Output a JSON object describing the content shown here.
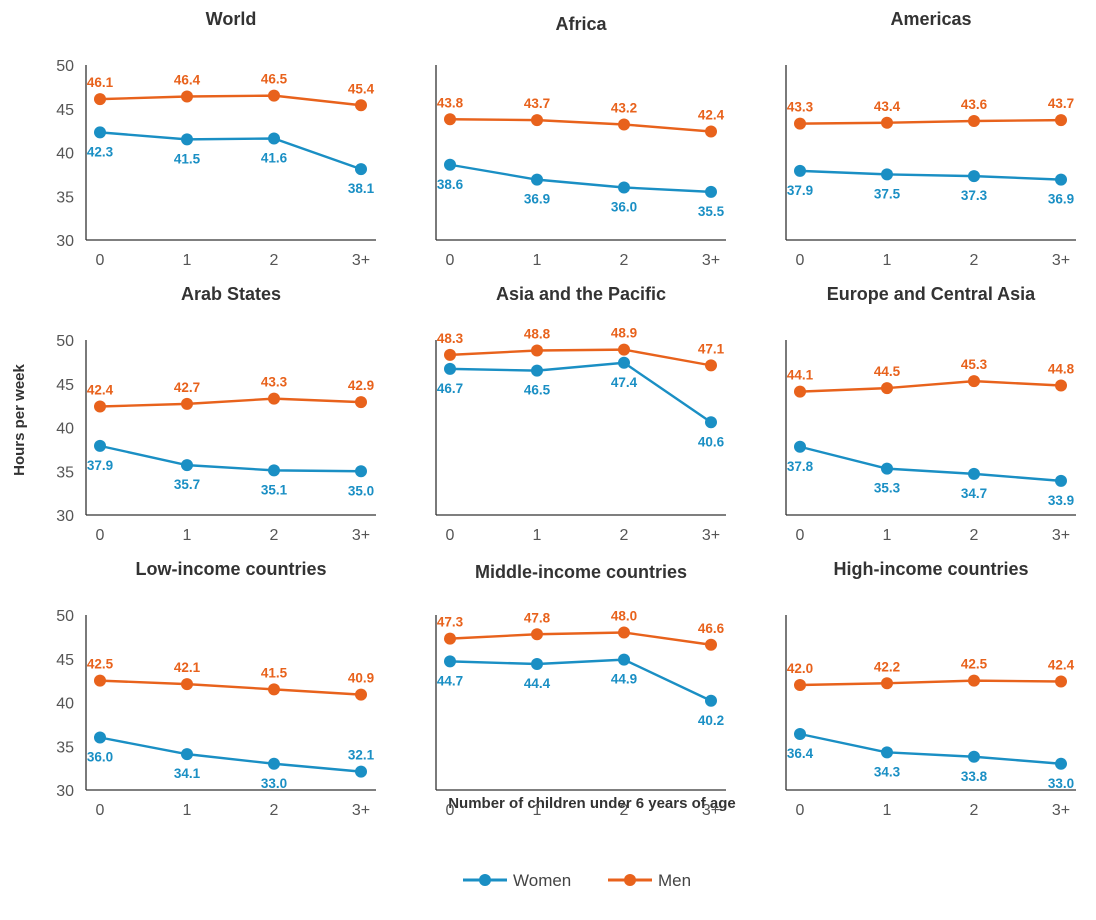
{
  "colors": {
    "women": "#1a8fc4",
    "men": "#e8621c",
    "axis": "#333333",
    "tick_text": "#555555"
  },
  "chart_data": {
    "type": "line",
    "xlabel": "Number of children under 6 years of age",
    "ylabel": "Hours per week",
    "categories": [
      "0",
      "1",
      "2",
      "3+"
    ],
    "ylim": [
      30,
      50
    ],
    "yticks": [
      "30",
      "35",
      "40",
      "45",
      "50"
    ],
    "grid": false,
    "legend": {
      "position": "bottom-center",
      "entries": [
        "Women",
        "Men"
      ]
    },
    "panels": [
      {
        "title": "World",
        "series": [
          {
            "name": "Women",
            "values": [
              42.3,
              41.5,
              41.6,
              38.1
            ],
            "labels": [
              "42.3",
              "41.5",
              "41.6",
              "38.1"
            ]
          },
          {
            "name": "Men",
            "values": [
              46.1,
              46.4,
              46.5,
              45.4
            ],
            "labels": [
              "46.1",
              "46.4",
              "46.5",
              "45.4"
            ]
          }
        ]
      },
      {
        "title": "Africa",
        "series": [
          {
            "name": "Women",
            "values": [
              38.6,
              36.9,
              36.0,
              35.5
            ],
            "labels": [
              "38.6",
              "36.9",
              "36.0",
              "35.5"
            ]
          },
          {
            "name": "Men",
            "values": [
              43.8,
              43.7,
              43.2,
              42.4
            ],
            "labels": [
              "43.8",
              "43.7",
              "43.2",
              "42.4"
            ]
          }
        ]
      },
      {
        "title": "Americas",
        "series": [
          {
            "name": "Women",
            "values": [
              37.9,
              37.5,
              37.3,
              36.9
            ],
            "labels": [
              "37.9",
              "37.5",
              "37.3",
              "36.9"
            ]
          },
          {
            "name": "Men",
            "values": [
              43.3,
              43.4,
              43.6,
              43.7
            ],
            "labels": [
              "43.3",
              "43.4",
              "43.6",
              "43.7"
            ]
          }
        ]
      },
      {
        "title": "Arab States",
        "series": [
          {
            "name": "Women",
            "values": [
              37.9,
              35.7,
              35.1,
              35.0
            ],
            "labels": [
              "37.9",
              "35.7",
              "35.1",
              "35.0"
            ]
          },
          {
            "name": "Men",
            "values": [
              42.4,
              42.7,
              43.3,
              42.9
            ],
            "labels": [
              "42.4",
              "42.7",
              "43.3",
              "42.9"
            ]
          }
        ]
      },
      {
        "title": "Asia and the Pacific",
        "series": [
          {
            "name": "Women",
            "values": [
              46.7,
              46.5,
              47.4,
              40.6
            ],
            "labels": [
              "46.7",
              "46.5",
              "47.4",
              "40.6"
            ]
          },
          {
            "name": "Men",
            "values": [
              48.3,
              48.8,
              48.9,
              47.1
            ],
            "labels": [
              "48.3",
              "48.8",
              "48.9",
              "47.1"
            ]
          }
        ]
      },
      {
        "title": "Europe and Central Asia",
        "series": [
          {
            "name": "Women",
            "values": [
              37.8,
              35.3,
              34.7,
              33.9
            ],
            "labels": [
              "37.8",
              "35.3",
              "34.7",
              "33.9"
            ]
          },
          {
            "name": "Men",
            "values": [
              44.1,
              44.5,
              45.3,
              44.8
            ],
            "labels": [
              "44.1",
              "44.5",
              "45.3",
              "44.8"
            ]
          }
        ]
      },
      {
        "title": "Low-income countries",
        "series": [
          {
            "name": "Women",
            "values": [
              36.0,
              34.1,
              33.0,
              32.1
            ],
            "labels": [
              "36.0",
              "34.1",
              "33.0",
              "32.1"
            ]
          },
          {
            "name": "Men",
            "values": [
              42.5,
              42.1,
              41.5,
              40.9
            ],
            "labels": [
              "42.5",
              "42.1",
              "41.5",
              "40.9"
            ]
          }
        ]
      },
      {
        "title": "Middle-income countries",
        "series": [
          {
            "name": "Women",
            "values": [
              44.7,
              44.4,
              44.9,
              40.2
            ],
            "labels": [
              "44.7",
              "44.4",
              "44.9",
              "40.2"
            ]
          },
          {
            "name": "Men",
            "values": [
              47.3,
              47.8,
              48.0,
              46.6
            ],
            "labels": [
              "47.3",
              "47.8",
              "48.0",
              "46.6"
            ]
          }
        ]
      },
      {
        "title": "High-income countries",
        "series": [
          {
            "name": "Women",
            "values": [
              36.4,
              34.3,
              33.8,
              33.0
            ],
            "labels": [
              "36.4",
              "34.3",
              "33.8",
              "33.0"
            ]
          },
          {
            "name": "Men",
            "values": [
              42.0,
              42.2,
              42.5,
              42.4
            ],
            "labels": [
              "42.0",
              "42.2",
              "42.5",
              "42.4"
            ]
          }
        ]
      }
    ]
  }
}
